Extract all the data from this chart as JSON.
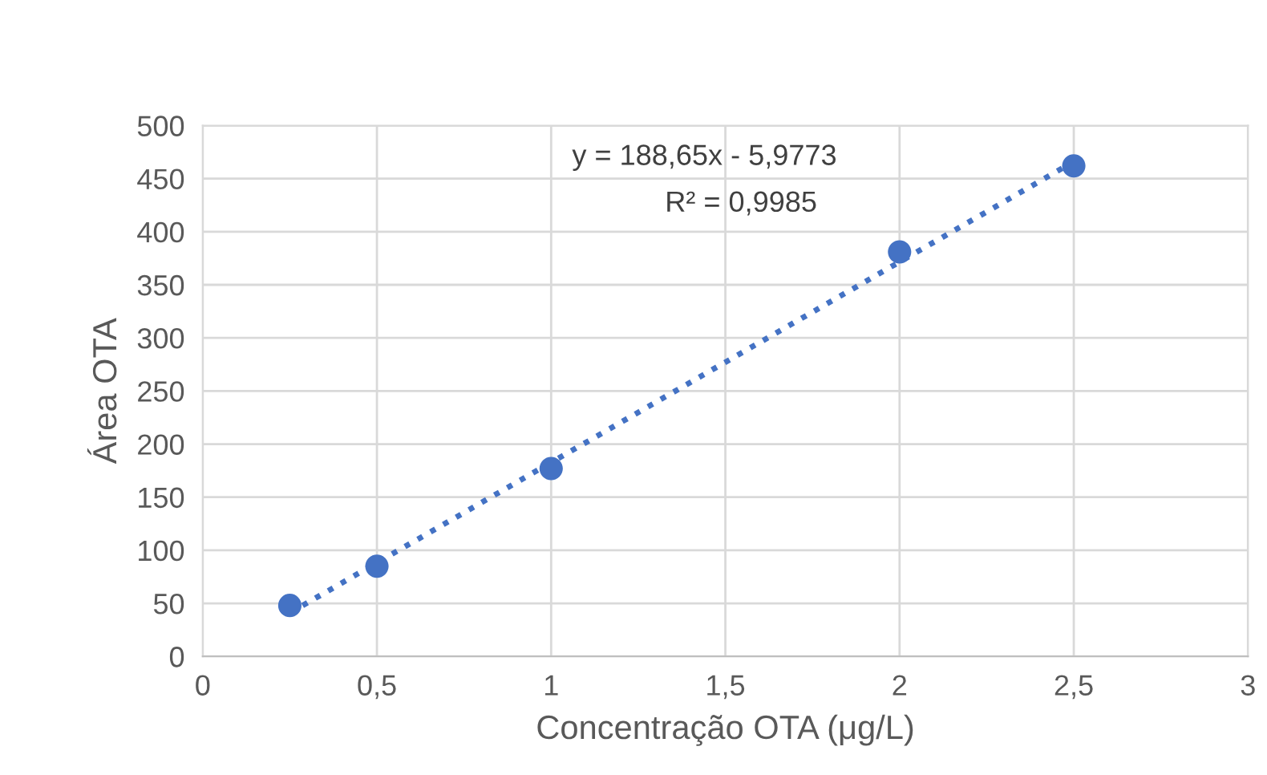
{
  "chart_data": {
    "type": "scatter",
    "xlabel": "Concentração OTA (μg/L)",
    "ylabel": "Área OTA",
    "x": [
      0.25,
      0.5,
      1,
      2,
      2.5
    ],
    "series": [
      {
        "color": "#4472c4",
        "values": [
          48,
          85,
          177,
          381,
          462
        ],
        "marker": "circle"
      },
      {
        "type": "line",
        "color": "#4472c4",
        "x": [
          0.25,
          2.5
        ],
        "values": [
          41,
          466
        ],
        "line_style": "dotted",
        "marker": "none"
      }
    ],
    "annotations": [
      "y = 188,65x - 5,9773",
      "R² = 0,9985"
    ],
    "xlim": [
      0,
      3
    ],
    "xticks": [
      0,
      {
        "value": 0.5,
        "label": "0,5"
      },
      1,
      {
        "value": 1.5,
        "label": "1,5"
      },
      2,
      {
        "value": 2.5,
        "label": "2,5"
      },
      3
    ],
    "ylim": [
      0,
      500
    ],
    "yticks": [
      0,
      50,
      100,
      150,
      200,
      250,
      300,
      350,
      400,
      450,
      500
    ],
    "grid": true,
    "legend": false
  }
}
